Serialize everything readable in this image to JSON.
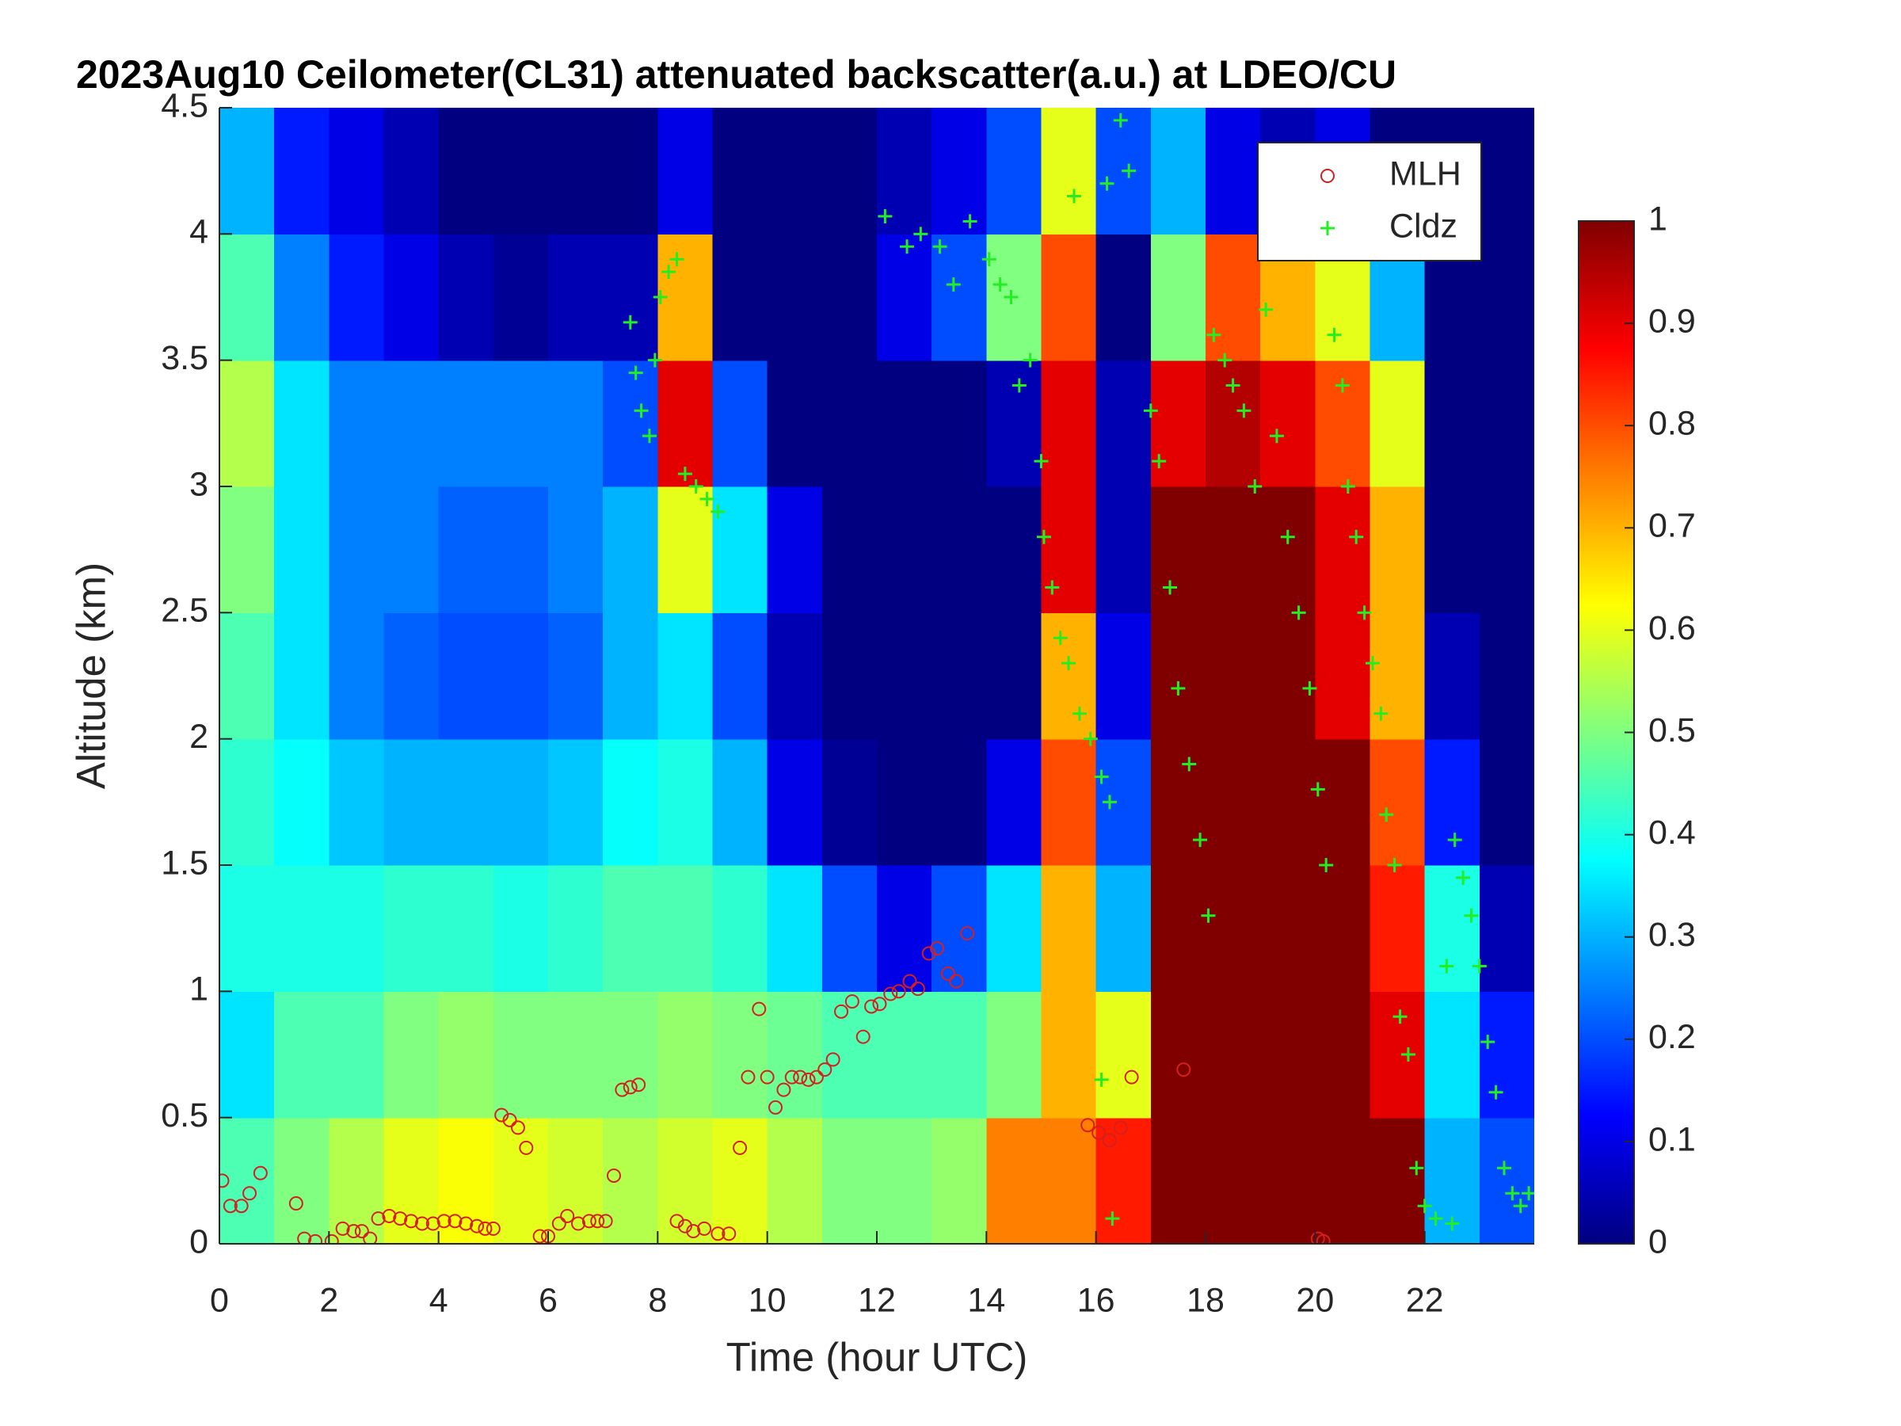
{
  "chart_data": {
    "type": "heatmap",
    "title": "2023Aug10 Ceilometer(CL31) attenuated backscatter(a.u.) at LDEO/CU",
    "xlabel": "Time (hour UTC)",
    "ylabel": "Altitude (km)",
    "xlim": [
      0,
      24
    ],
    "xticks": [
      0,
      2,
      4,
      6,
      8,
      10,
      12,
      14,
      16,
      18,
      20,
      22
    ],
    "ylim": [
      0,
      4.5
    ],
    "yticks": [
      0,
      0.5,
      1,
      1.5,
      2,
      2.5,
      3,
      3.5,
      4,
      4.5
    ],
    "x_bins": [
      0,
      1,
      2,
      3,
      4,
      5,
      6,
      7,
      8,
      9,
      10,
      11,
      12,
      13,
      14,
      15,
      16,
      17,
      18,
      19,
      20,
      21,
      22,
      23,
      24
    ],
    "y_bins": [
      0,
      0.5,
      1,
      1.5,
      2,
      2.5,
      3,
      3.5,
      4,
      4.5
    ],
    "z": [
      [
        0.45,
        0.5,
        0.55,
        0.6,
        0.62,
        0.6,
        0.58,
        0.55,
        0.58,
        0.6,
        0.55,
        0.5,
        0.5,
        0.52,
        0.75,
        0.75,
        0.85,
        1,
        1,
        1,
        1,
        1,
        0.3,
        0.2
      ],
      [
        0.35,
        0.45,
        0.45,
        0.5,
        0.52,
        0.5,
        0.5,
        0.5,
        0.52,
        0.5,
        0.48,
        0.45,
        0.45,
        0.45,
        0.5,
        0.7,
        0.6,
        1,
        1,
        1,
        1,
        0.9,
        0.35,
        0.15
      ],
      [
        0.4,
        0.4,
        0.4,
        0.42,
        0.42,
        0.4,
        0.42,
        0.45,
        0.45,
        0.42,
        0.35,
        0.2,
        0.1,
        0.2,
        0.35,
        0.7,
        0.3,
        1,
        1,
        1,
        1,
        0.85,
        0.4,
        0.05
      ],
      [
        0.42,
        0.38,
        0.32,
        0.3,
        0.3,
        0.3,
        0.32,
        0.38,
        0.4,
        0.3,
        0.1,
        0.02,
        0,
        0,
        0.1,
        0.8,
        0.2,
        1,
        1,
        1,
        1,
        0.8,
        0.15,
        0
      ],
      [
        0.45,
        0.35,
        0.25,
        0.22,
        0.2,
        0.2,
        0.22,
        0.3,
        0.35,
        0.2,
        0.05,
        0,
        0,
        0,
        0,
        0.7,
        0.1,
        1,
        1,
        1,
        0.9,
        0.7,
        0.05,
        0
      ],
      [
        0.5,
        0.35,
        0.25,
        0.25,
        0.22,
        0.22,
        0.25,
        0.3,
        0.6,
        0.35,
        0.1,
        0,
        0,
        0,
        0,
        0.9,
        0.05,
        1,
        1,
        1,
        0.9,
        0.7,
        0,
        0
      ],
      [
        0.55,
        0.35,
        0.25,
        0.25,
        0.25,
        0.25,
        0.25,
        0.2,
        0.9,
        0.2,
        0,
        0,
        0,
        0,
        0.05,
        0.9,
        0.05,
        0.9,
        0.95,
        0.9,
        0.8,
        0.6,
        0,
        0
      ],
      [
        0.45,
        0.25,
        0.15,
        0.1,
        0.05,
        0.02,
        0.05,
        0.05,
        0.7,
        0,
        0,
        0,
        0.1,
        0.2,
        0.5,
        0.8,
        0,
        0.5,
        0.8,
        0.7,
        0.6,
        0.3,
        0,
        0
      ],
      [
        0.3,
        0.15,
        0.1,
        0.05,
        0,
        0,
        0,
        0,
        0.1,
        0,
        0,
        0,
        0.05,
        0.1,
        0.2,
        0.6,
        0.2,
        0.3,
        0.1,
        0.05,
        0.1,
        0,
        0,
        0
      ]
    ],
    "colormap": "jet",
    "clim": [
      0,
      1
    ],
    "cticks": [
      0,
      0.1,
      0.2,
      0.3,
      0.4,
      0.5,
      0.6,
      0.7,
      0.8,
      0.9,
      1
    ],
    "legend": "upper right",
    "series": [
      {
        "name": "MLH",
        "marker": "circle",
        "color": "#d42020",
        "x": [
          0.05,
          0.2,
          0.4,
          0.55,
          0.75,
          1.4,
          1.55,
          1.75,
          2.05,
          2.25,
          2.45,
          2.6,
          2.75,
          2.9,
          3.1,
          3.3,
          3.5,
          3.7,
          3.9,
          4.1,
          4.3,
          4.5,
          4.7,
          4.85,
          5.0,
          5.15,
          5.3,
          5.45,
          5.6,
          5.85,
          6.0,
          6.2,
          6.35,
          6.55,
          6.75,
          6.9,
          7.05,
          7.2,
          7.35,
          7.5,
          7.65,
          8.35,
          8.5,
          8.65,
          8.85,
          9.1,
          9.3,
          9.5,
          9.65,
          9.85,
          10.0,
          10.15,
          10.3,
          10.45,
          10.6,
          10.75,
          10.9,
          11.05,
          11.2,
          11.35,
          11.55,
          11.75,
          11.9,
          12.05,
          12.25,
          12.4,
          12.6,
          12.75,
          12.95,
          13.1,
          13.3,
          13.45,
          13.65,
          15.85,
          16.05,
          16.25,
          16.45,
          16.65,
          17.6,
          20.05,
          20.15
        ],
        "values": [
          0.25,
          0.15,
          0.15,
          0.2,
          0.28,
          0.16,
          0.02,
          0.01,
          0.01,
          0.06,
          0.05,
          0.05,
          0.02,
          0.1,
          0.11,
          0.1,
          0.09,
          0.08,
          0.08,
          0.09,
          0.09,
          0.08,
          0.07,
          0.06,
          0.06,
          0.51,
          0.49,
          0.46,
          0.38,
          0.03,
          0.03,
          0.08,
          0.11,
          0.08,
          0.09,
          0.09,
          0.09,
          0.27,
          0.61,
          0.62,
          0.63,
          0.09,
          0.07,
          0.05,
          0.06,
          0.04,
          0.04,
          0.38,
          0.66,
          0.93,
          0.66,
          0.54,
          0.61,
          0.66,
          0.66,
          0.65,
          0.66,
          0.69,
          0.73,
          0.92,
          0.96,
          0.82,
          0.94,
          0.95,
          0.99,
          1.0,
          1.04,
          1.01,
          1.15,
          1.17,
          1.07,
          1.04,
          1.23,
          0.47,
          0.44,
          0.41,
          0.46,
          0.66,
          0.69,
          0.02,
          0.01
        ]
      },
      {
        "name": "Cldz",
        "marker": "plus",
        "color": "#22ee22",
        "x": [
          7.5,
          7.6,
          7.7,
          7.85,
          7.95,
          8.05,
          8.2,
          8.35,
          8.5,
          8.7,
          8.9,
          9.1,
          12.15,
          12.55,
          12.8,
          13.15,
          13.4,
          13.7,
          14.05,
          14.25,
          14.45,
          14.6,
          14.8,
          15.0,
          15.05,
          15.2,
          15.35,
          15.5,
          15.7,
          15.9,
          16.1,
          16.25,
          16.3,
          16.1,
          15.6,
          16.2,
          16.45,
          16.6,
          17.0,
          17.15,
          17.35,
          17.5,
          17.7,
          17.9,
          18.05,
          18.15,
          18.35,
          18.5,
          18.7,
          18.9,
          19.1,
          19.3,
          19.5,
          19.7,
          19.9,
          20.05,
          20.2,
          20.35,
          20.5,
          20.6,
          20.75,
          20.9,
          21.05,
          21.2,
          21.3,
          21.45,
          21.55,
          21.7,
          21.85,
          22.0,
          22.2,
          22.5,
          22.4,
          22.55,
          22.7,
          22.85,
          23.0,
          23.15,
          23.3,
          23.45,
          23.6,
          23.75,
          23.9
        ],
        "values": [
          3.65,
          3.45,
          3.3,
          3.2,
          3.5,
          3.75,
          3.85,
          3.9,
          3.05,
          3.0,
          2.95,
          2.9,
          4.07,
          3.95,
          4.0,
          3.95,
          3.8,
          4.05,
          3.9,
          3.8,
          3.75,
          3.4,
          3.5,
          3.1,
          2.8,
          2.6,
          2.4,
          2.3,
          2.1,
          2.0,
          1.85,
          1.75,
          0.1,
          0.65,
          4.15,
          4.2,
          4.45,
          4.25,
          3.3,
          3.1,
          2.6,
          2.2,
          1.9,
          1.6,
          1.3,
          3.6,
          3.5,
          3.4,
          3.3,
          3.0,
          3.7,
          3.2,
          2.8,
          2.5,
          2.2,
          1.8,
          1.5,
          3.6,
          3.4,
          3.0,
          2.8,
          2.5,
          2.3,
          2.1,
          1.7,
          1.5,
          0.9,
          0.75,
          0.3,
          0.15,
          0.1,
          0.08,
          1.1,
          1.6,
          1.45,
          1.3,
          1.1,
          0.8,
          0.6,
          0.3,
          0.2,
          0.15,
          0.2
        ]
      }
    ]
  }
}
